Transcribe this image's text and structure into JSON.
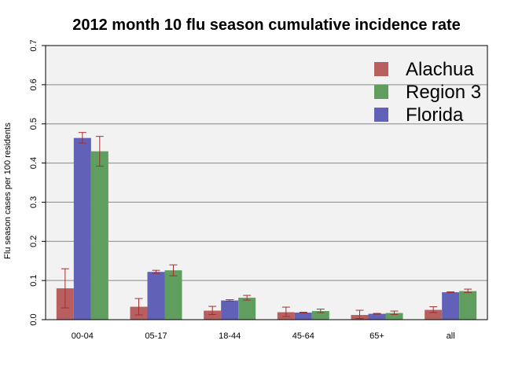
{
  "chart_data": {
    "type": "bar",
    "title": "2012 month 10 flu season cumulative incidence rate",
    "xlabel": "",
    "ylabel": "Flu season cases per 100 residents",
    "ylim": [
      0,
      0.7
    ],
    "yticks": [
      "0.0",
      "0.1",
      "0.2",
      "0.3",
      "0.4",
      "0.5",
      "0.6",
      "0.7"
    ],
    "grid": true,
    "legend_position": "top-right",
    "categories": [
      "00-04",
      "05-17",
      "18-44",
      "45-64",
      "65+",
      "all"
    ],
    "series": [
      {
        "name": "Alachua",
        "color": "#b85f5f",
        "values": [
          0.08,
          0.033,
          0.023,
          0.019,
          0.012,
          0.025
        ],
        "error_low": [
          0.03,
          0.012,
          0.013,
          0.008,
          0.003,
          0.018
        ],
        "error_high": [
          0.13,
          0.054,
          0.034,
          0.032,
          0.024,
          0.033
        ]
      },
      {
        "name": "Florida",
        "color": "#6161b8",
        "values": [
          0.464,
          0.122,
          0.049,
          0.018,
          0.015,
          0.07
        ],
        "error_low": [
          0.451,
          0.118,
          0.047,
          0.017,
          0.014,
          0.069
        ],
        "error_high": [
          0.478,
          0.126,
          0.051,
          0.019,
          0.016,
          0.071
        ]
      },
      {
        "name": "Region 3",
        "color": "#5f9e5f",
        "values": [
          0.43,
          0.126,
          0.056,
          0.022,
          0.017,
          0.073
        ],
        "error_low": [
          0.392,
          0.112,
          0.05,
          0.018,
          0.013,
          0.069
        ],
        "error_high": [
          0.468,
          0.14,
          0.062,
          0.027,
          0.022,
          0.078
        ]
      }
    ],
    "legend_order": [
      "Alachua",
      "Region 3",
      "Florida"
    ],
    "errorbar_color": "#a03030",
    "panel_background": "#f2f2f2",
    "grid_color": "#888888"
  }
}
